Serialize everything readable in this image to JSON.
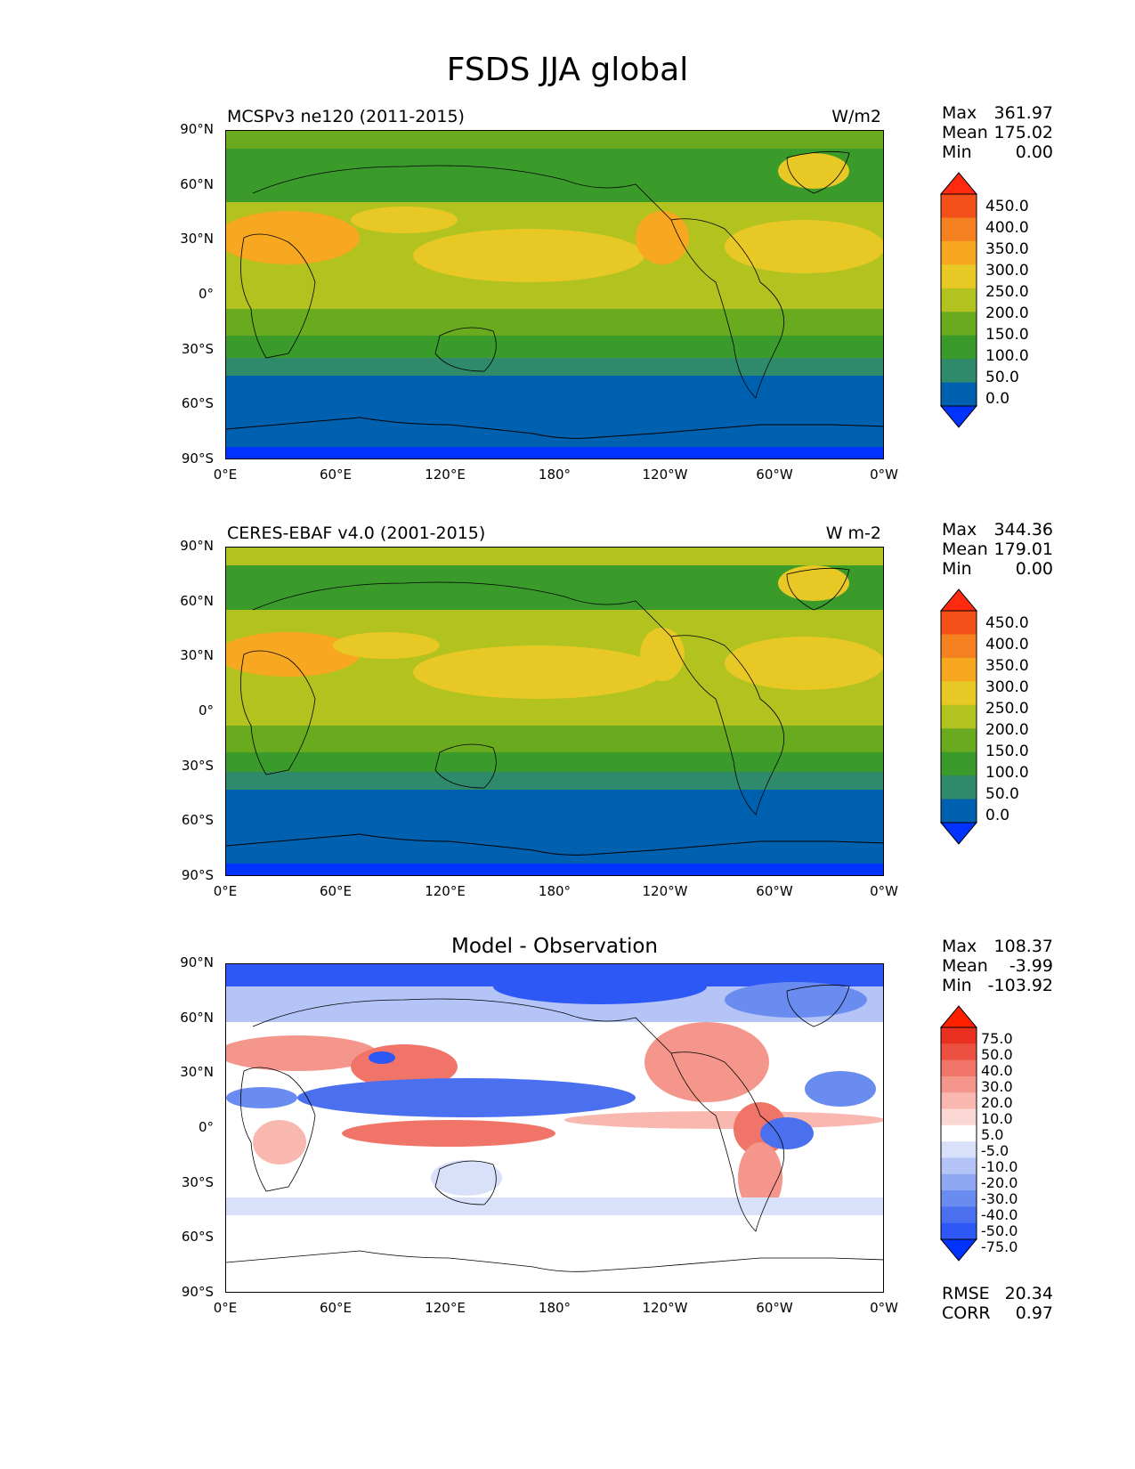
{
  "title": "FSDS JJA global",
  "ytick_labels": [
    "90°N",
    "60°N",
    "30°N",
    "0°",
    "30°S",
    "60°S",
    "90°S"
  ],
  "xtick_labels": [
    "0°E",
    "60°E",
    "120°E",
    "180°",
    "120°W",
    "60°W",
    "0°W"
  ],
  "panels": [
    {
      "left_label": "MCSPv3 ne120 (2011-2015)",
      "right_label": "W/m2",
      "stats": {
        "max_label": "Max",
        "max": "361.97",
        "mean_label": "Mean",
        "mean": "175.02",
        "min_label": "Min",
        "min": "0.00"
      },
      "colorbar_labels": [
        "450.0",
        "400.0",
        "350.0",
        "300.0",
        "250.0",
        "200.0",
        "150.0",
        "100.0",
        "50.0",
        "0.0"
      ]
    },
    {
      "left_label": "CERES-EBAF v4.0 (2001-2015)",
      "right_label": "W m-2",
      "stats": {
        "max_label": "Max",
        "max": "344.36",
        "mean_label": "Mean",
        "mean": "179.01",
        "min_label": "Min",
        "min": "0.00"
      },
      "colorbar_labels": [
        "450.0",
        "400.0",
        "350.0",
        "300.0",
        "250.0",
        "200.0",
        "150.0",
        "100.0",
        "50.0",
        "0.0"
      ]
    },
    {
      "center_label": "Model - Observation",
      "stats": {
        "max_label": "Max",
        "max": "108.37",
        "mean_label": "Mean",
        "mean": "-3.99",
        "min_label": "Min",
        "min": "-103.92"
      },
      "colorbar_labels": [
        "75.0",
        "50.0",
        "40.0",
        "30.0",
        "20.0",
        "10.0",
        "5.0",
        "-5.0",
        "-10.0",
        "-20.0",
        "-30.0",
        "-40.0",
        "-50.0",
        "-75.0"
      ],
      "extra": {
        "rmse_label": "RMSE",
        "rmse": "20.34",
        "corr_label": "CORR",
        "corr": "0.97"
      }
    }
  ],
  "colors": {
    "abs_scale": [
      "#0033ff",
      "#0060b0",
      "#2e8a6a",
      "#3a9b2a",
      "#6aaa1e",
      "#b2c21e",
      "#e8c825",
      "#f7a820",
      "#f58020",
      "#f25018",
      "#ff2a10"
    ],
    "diff_scale": [
      "#0033ff",
      "#2e58f5",
      "#4a70f0",
      "#6a8cf0",
      "#90a8f2",
      "#b4c4f6",
      "#d8e0fa",
      "#ffffff",
      "#fcd8d4",
      "#f8b8b0",
      "#f4968c",
      "#f07468",
      "#ec5040",
      "#ea3020",
      "#ff2000"
    ]
  }
}
